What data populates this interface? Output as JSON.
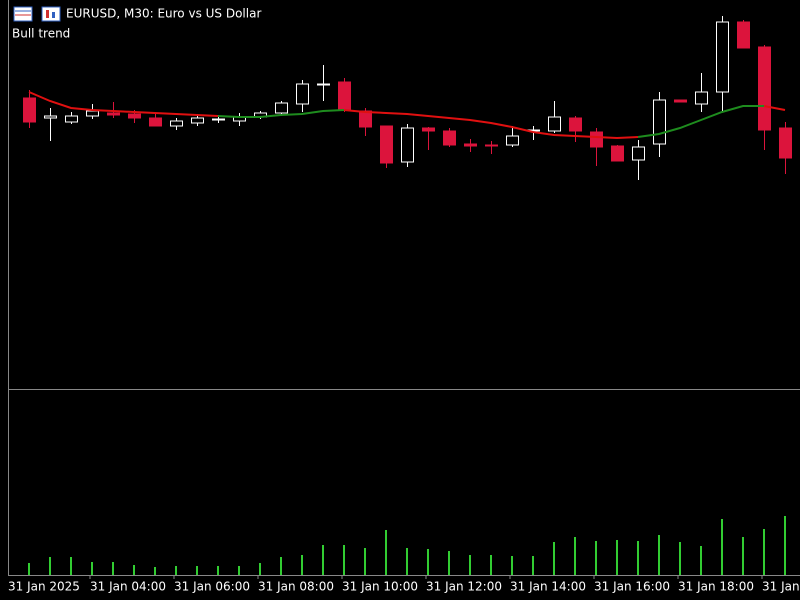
{
  "chart_data": {
    "type": "candlestick",
    "title": "EURUSD, M30:  Euro vs US Dollar",
    "subtitle": "Bull trend",
    "start_label": "31 Jan 2025",
    "categories": [
      null,
      null,
      null,
      "31 Jan 04:00",
      null,
      null,
      null,
      "31 Jan 06:00",
      null,
      null,
      null,
      "31 Jan 08:00",
      null,
      null,
      null,
      "31 Jan 10:00",
      null,
      null,
      null,
      "31 Jan 12:00",
      null,
      null,
      null,
      "31 Jan 14:00",
      null,
      null,
      null,
      "31 Jan 16:00",
      null,
      null,
      null,
      "31 Jan 18:00",
      null,
      null,
      null,
      "31 Jan",
      null
    ],
    "open": [
      290,
      270,
      266,
      272,
      275,
      274,
      270,
      262,
      265,
      268,
      267,
      271,
      275,
      284,
      303,
      306,
      277,
      262,
      226,
      260,
      257,
      244,
      243,
      243,
      257,
      257,
      270,
      256,
      242,
      228,
      244,
      288,
      284,
      296,
      366,
      341,
      260
    ],
    "high": [
      298,
      280,
      276,
      284,
      286,
      278,
      274,
      270,
      274,
      273,
      275,
      277,
      287,
      308,
      323,
      310,
      280,
      262,
      264,
      261,
      260,
      249,
      247,
      262,
      262,
      287,
      272,
      260,
      243,
      248,
      296,
      288,
      315,
      372,
      368,
      343,
      266
    ],
    "low": [
      260,
      247,
      264,
      269,
      270,
      265,
      262,
      258,
      262,
      265,
      262,
      269,
      273,
      276,
      287,
      276,
      252,
      220,
      221,
      238,
      241,
      236,
      234,
      241,
      248,
      255,
      246,
      222,
      227,
      208,
      231,
      286,
      276,
      276,
      340,
      238,
      214
    ],
    "close": [
      266,
      272,
      272,
      277,
      273,
      270,
      262,
      267,
      270,
      269,
      271,
      275,
      285,
      304,
      304,
      278,
      261,
      225,
      260,
      257,
      243,
      242,
      242,
      252,
      258,
      271,
      257,
      241,
      227,
      241,
      288,
      286,
      296,
      366,
      340,
      258,
      230
    ],
    "up_color": "#ffffff",
    "down_color": "#dc143c",
    "ylim": [
      0,
      388
    ],
    "ma_lines": [
      {
        "color": "#e01010",
        "values": [
          296,
          287,
          280,
          278,
          277,
          276,
          275,
          274,
          273,
          272,
          null,
          null,
          null,
          null,
          null,
          278,
          276,
          275,
          274,
          272,
          270,
          268,
          265,
          261,
          256,
          253,
          252,
          251,
          250,
          251,
          null,
          null,
          null,
          null,
          null,
          282,
          278
        ]
      },
      {
        "color": "#1e8c1e",
        "values": [
          null,
          null,
          null,
          null,
          null,
          null,
          null,
          null,
          null,
          272,
          271,
          271,
          273,
          274,
          277,
          278,
          null,
          null,
          null,
          null,
          null,
          null,
          null,
          null,
          null,
          null,
          null,
          null,
          null,
          251,
          254,
          260,
          268,
          276,
          282,
          282,
          null
        ]
      }
    ],
    "volume": {
      "color": "#32cd32",
      "ylim": [
        0,
        183
      ],
      "values": [
        12,
        18,
        18,
        13,
        13,
        10,
        8,
        9,
        9,
        9,
        9,
        12,
        18,
        20,
        30,
        30,
        27,
        45,
        27,
        26,
        24,
        20,
        20,
        19,
        19,
        33,
        38,
        34,
        35,
        34,
        40,
        33,
        29,
        56,
        38,
        46,
        59
      ]
    }
  }
}
